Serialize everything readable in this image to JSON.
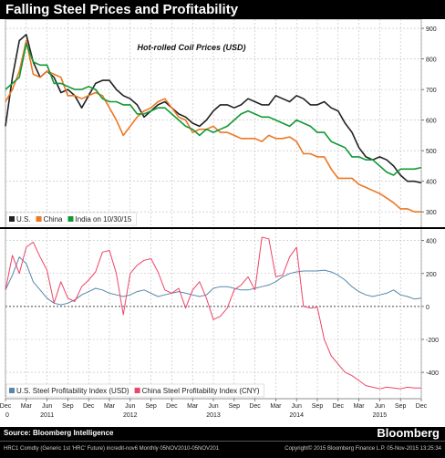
{
  "title": "Falling Steel Prices and Profitability",
  "footer": {
    "source": "Source: Bloomberg Intelligence",
    "brand": "Bloomberg",
    "left": "HRC1 Comdty (Generic 1st 'HRC' Future) incredit-nov6  Monthly 05NOV2010-05NOV201",
    "right": "Copyright© 2015 Bloomberg Finance L.P.       05-Nov-2015  13:25:34"
  },
  "x_axis": {
    "months": [
      "Dec",
      "Mar",
      "Jun",
      "Sep",
      "Dec",
      "Mar",
      "Jun",
      "Sep",
      "Dec",
      "Mar",
      "Jun",
      "Sep",
      "Dec",
      "Mar",
      "Jun",
      "Sep",
      "Dec",
      "Mar",
      "Jun",
      "Sep",
      "Dec"
    ],
    "years": [
      {
        "label": "0",
        "at": 0
      },
      {
        "label": "2011",
        "at": 2
      },
      {
        "label": "2012",
        "at": 6
      },
      {
        "label": "2013",
        "at": 10
      },
      {
        "label": "2014",
        "at": 14
      },
      {
        "label": "2015",
        "at": 18
      }
    ]
  },
  "chart_data": [
    {
      "type": "line",
      "title": "Hot-rolled Coil Prices (USD)",
      "ylim": [
        250,
        930
      ],
      "yticks": [
        300,
        400,
        500,
        600,
        700,
        800,
        900
      ],
      "legend": {
        "position": "bottom-left",
        "text": [
          {
            "name": "U.S.",
            "color": "#222222"
          },
          {
            "name": "China",
            "color": "#ee7722"
          },
          {
            "name": "India on 10/30/15",
            "color": "#119933"
          }
        ]
      },
      "series": [
        {
          "name": "U.S.",
          "color": "#222222",
          "x": [
            0,
            1,
            2,
            3,
            4,
            5,
            6,
            7,
            8,
            9,
            10,
            11,
            12,
            13,
            14,
            15,
            16,
            17,
            18,
            19,
            20,
            21,
            22,
            23,
            24,
            25,
            26,
            27,
            28,
            29,
            30,
            31,
            32,
            33,
            34,
            35,
            36,
            37,
            38,
            39,
            40,
            41,
            42,
            43,
            44,
            45,
            46,
            47,
            48,
            49,
            50,
            51,
            52,
            53,
            54,
            55,
            56,
            57,
            58,
            59,
            60
          ],
          "values": [
            580,
            740,
            860,
            880,
            790,
            740,
            760,
            740,
            690,
            700,
            680,
            640,
            680,
            720,
            730,
            730,
            700,
            680,
            670,
            650,
            610,
            630,
            650,
            660,
            640,
            620,
            610,
            590,
            580,
            600,
            630,
            650,
            650,
            640,
            650,
            670,
            660,
            650,
            650,
            680,
            670,
            660,
            680,
            670,
            650,
            650,
            660,
            640,
            630,
            590,
            560,
            510,
            480,
            470,
            480,
            470,
            450,
            420,
            400,
            400,
            395
          ]
        },
        {
          "name": "China",
          "color": "#ee7722",
          "x": [
            0,
            1,
            2,
            3,
            4,
            5,
            6,
            7,
            8,
            9,
            10,
            11,
            12,
            13,
            14,
            15,
            16,
            17,
            18,
            19,
            20,
            21,
            22,
            23,
            24,
            25,
            26,
            27,
            28,
            29,
            30,
            31,
            32,
            33,
            34,
            35,
            36,
            37,
            38,
            39,
            40,
            41,
            42,
            43,
            44,
            45,
            46,
            47,
            48,
            49,
            50,
            51,
            52,
            53,
            54,
            55,
            56,
            57,
            58,
            59,
            60
          ],
          "values": [
            660,
            700,
            760,
            860,
            750,
            740,
            760,
            750,
            740,
            680,
            680,
            670,
            680,
            690,
            680,
            640,
            600,
            550,
            580,
            610,
            630,
            640,
            660,
            670,
            640,
            610,
            600,
            560,
            570,
            570,
            580,
            560,
            560,
            550,
            540,
            540,
            540,
            530,
            550,
            540,
            540,
            545,
            530,
            490,
            490,
            480,
            480,
            440,
            410,
            410,
            410,
            390,
            380,
            370,
            360,
            345,
            330,
            310,
            310,
            300,
            300
          ]
        },
        {
          "name": "India on 10/30/15",
          "color": "#119933",
          "x": [
            0,
            1,
            2,
            3,
            4,
            5,
            6,
            7,
            8,
            9,
            10,
            11,
            12,
            13,
            14,
            15,
            16,
            17,
            18,
            19,
            20,
            21,
            22,
            23,
            24,
            25,
            26,
            27,
            28,
            29,
            30,
            31,
            32,
            33,
            34,
            35,
            36,
            37,
            38,
            39,
            40,
            41,
            42,
            43,
            44,
            45,
            46,
            47,
            48,
            49,
            50,
            51,
            52,
            53,
            54,
            55,
            56,
            57,
            58,
            59,
            60
          ],
          "values": [
            700,
            720,
            740,
            850,
            790,
            780,
            780,
            720,
            720,
            710,
            700,
            700,
            710,
            700,
            670,
            660,
            660,
            650,
            650,
            620,
            620,
            630,
            640,
            640,
            620,
            600,
            580,
            570,
            550,
            570,
            560,
            570,
            580,
            600,
            620,
            630,
            620,
            610,
            610,
            600,
            590,
            580,
            600,
            590,
            580,
            560,
            560,
            530,
            520,
            510,
            480,
            480,
            470,
            470,
            450,
            430,
            420,
            440,
            440,
            440,
            445
          ]
        }
      ]
    },
    {
      "type": "line",
      "ylim": [
        -560,
        470
      ],
      "yticks": [
        -400,
        -200,
        0,
        200,
        400
      ],
      "legend": {
        "position": "bottom-left",
        "text": [
          {
            "name": "U.S. Steel Profitability Index (USD)",
            "color": "#5588aa"
          },
          {
            "name": "China Steel Profitability Index (CNY)",
            "color": "#ee4466"
          }
        ]
      },
      "series": [
        {
          "name": "U.S. Steel Profitability Index (USD)",
          "color": "#5588aa",
          "x": [
            0,
            1,
            2,
            3,
            4,
            5,
            6,
            7,
            8,
            9,
            10,
            11,
            12,
            13,
            14,
            15,
            16,
            17,
            18,
            19,
            20,
            21,
            22,
            23,
            24,
            25,
            26,
            27,
            28,
            29,
            30,
            31,
            32,
            33,
            34,
            35,
            36,
            37,
            38,
            39,
            40,
            41,
            42,
            43,
            44,
            45,
            46,
            47,
            48,
            49,
            50,
            51,
            52,
            53,
            54,
            55,
            56,
            57,
            58,
            59,
            60
          ],
          "values": [
            100,
            190,
            300,
            260,
            150,
            100,
            50,
            20,
            10,
            20,
            40,
            70,
            90,
            110,
            100,
            80,
            70,
            60,
            70,
            90,
            100,
            80,
            60,
            70,
            80,
            90,
            80,
            70,
            60,
            70,
            110,
            120,
            120,
            110,
            100,
            100,
            110,
            120,
            130,
            150,
            180,
            200,
            210,
            215,
            215,
            215,
            220,
            210,
            190,
            160,
            120,
            90,
            70,
            60,
            70,
            80,
            100,
            70,
            60,
            45,
            50
          ]
        },
        {
          "name": "China Steel Profitability Index (CNY)",
          "color": "#ee4466",
          "x": [
            0,
            1,
            2,
            3,
            4,
            5,
            6,
            7,
            8,
            9,
            10,
            11,
            12,
            13,
            14,
            15,
            16,
            17,
            18,
            19,
            20,
            21,
            22,
            23,
            24,
            25,
            26,
            27,
            28,
            29,
            30,
            31,
            32,
            33,
            34,
            35,
            36,
            37,
            38,
            39,
            40,
            41,
            42,
            43,
            44,
            45,
            46,
            47,
            48,
            49,
            50,
            51,
            52,
            53,
            54,
            55,
            56,
            57,
            58,
            59,
            60
          ],
          "values": [
            100,
            310,
            200,
            360,
            390,
            300,
            220,
            20,
            150,
            50,
            30,
            120,
            160,
            210,
            330,
            340,
            200,
            -50,
            200,
            250,
            280,
            290,
            210,
            100,
            80,
            110,
            -10,
            100,
            150,
            50,
            -80,
            -60,
            -10,
            100,
            130,
            180,
            100,
            420,
            410,
            180,
            190,
            300,
            360,
            0,
            -10,
            -5,
            -200,
            -300,
            -350,
            -400,
            -420,
            -450,
            -480,
            -490,
            -500,
            -490,
            -495,
            -500,
            -490,
            -495,
            -495
          ]
        }
      ]
    }
  ]
}
